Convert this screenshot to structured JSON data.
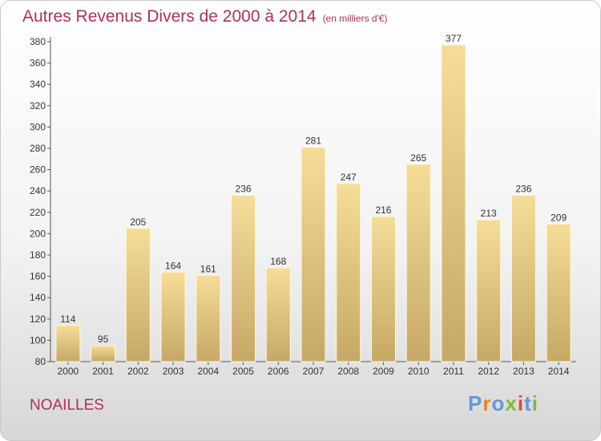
{
  "header": {
    "title": "Autres Revenus Divers de 2000 à 2014",
    "unit": "(en milliers d'€)"
  },
  "footer": {
    "place": "NOAILLES",
    "logo_letters": [
      "P",
      "r",
      "o",
      "x",
      "i",
      "t",
      "i"
    ],
    "logo_colors": [
      "#5f9ad8",
      "#e8842a",
      "#5f9ad8",
      "#86b83a",
      "#e2463c",
      "#5f9ad8",
      "#86b83a"
    ]
  },
  "chart_data": {
    "type": "bar",
    "categories": [
      "2000",
      "2001",
      "2002",
      "2003",
      "2004",
      "2005",
      "2006",
      "2007",
      "2008",
      "2009",
      "2010",
      "2011",
      "2012",
      "2013",
      "2014"
    ],
    "values": [
      114,
      95,
      205,
      164,
      161,
      236,
      168,
      281,
      247,
      216,
      265,
      377,
      213,
      236,
      209
    ],
    "ylim": [
      80,
      380
    ],
    "yticks": [
      80,
      100,
      120,
      140,
      160,
      180,
      200,
      220,
      240,
      260,
      280,
      300,
      320,
      340,
      360,
      380
    ],
    "grid": false,
    "colors": {
      "bar_light": "#f5dd98",
      "bar_dark": "#c6a866"
    }
  }
}
